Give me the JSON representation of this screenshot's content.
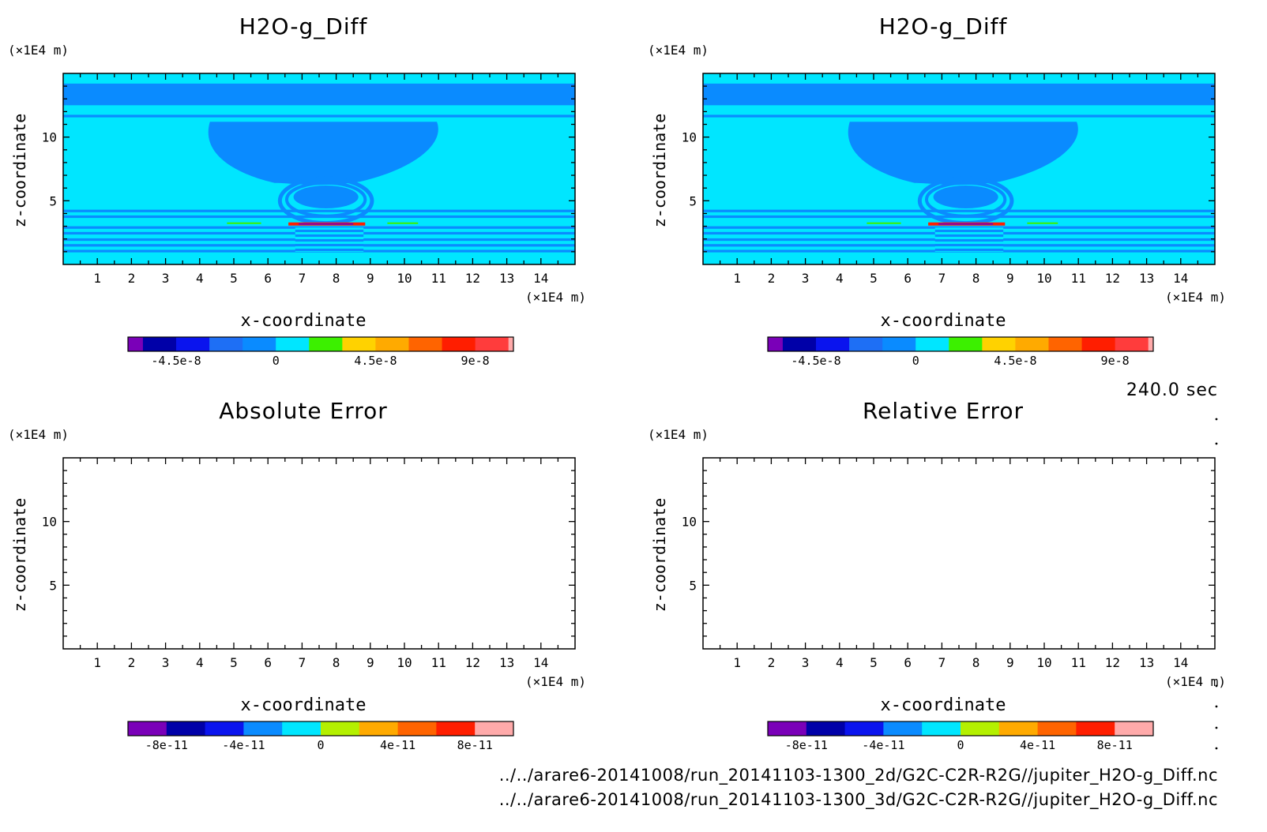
{
  "time_label": "240.0 sec",
  "files": [
    "../../arare6-20141008/run_20141103-1300_2d/G2C-C2R-R2G//jupiter_H2O-g_Diff.nc",
    "../../arare6-20141008/run_20141103-1300_3d/G2C-C2R-R2G//jupiter_H2O-g_Diff.nc"
  ],
  "colors": {
    "c_purple": "#7a00b8",
    "c_navy": "#0000a8",
    "c_blue": "#0a14ee",
    "c_mid": "#1e6ff5",
    "c_sky": "#0a8bff",
    "c_cyan": "#00e6ff",
    "c_green": "#3cf000",
    "c_lime": "#b4f000",
    "c_yellow": "#ffd200",
    "c_orange": "#ffaa00",
    "c_dorange": "#ff6400",
    "c_red": "#ff1e00",
    "c_lred": "#ff3c3c",
    "c_pink": "#ffaaaa"
  },
  "chart_data": [
    {
      "type": "heatmap",
      "title": "H2O-g_Diff",
      "xlabel": "x-coordinate",
      "ylabel": "z-coordinate",
      "x_unit": "(×1E4 m)",
      "y_unit": "(×1E4 m)",
      "xlim": [
        0,
        15
      ],
      "ylim": [
        0,
        15
      ],
      "xticks": [
        1,
        2,
        3,
        4,
        5,
        6,
        7,
        8,
        9,
        10,
        11,
        12,
        13,
        14
      ],
      "yticks": [
        5,
        10
      ],
      "field": "filled",
      "colorbar": {
        "colors": [
          "c_purple",
          "c_navy",
          "c_blue",
          "c_mid",
          "c_sky",
          "c_cyan",
          "c_green",
          "c_yellow",
          "c_orange",
          "c_dorange",
          "c_red",
          "c_lred",
          "c_pink"
        ],
        "weights": [
          0.45,
          1,
          1,
          1,
          1,
          1,
          1,
          1,
          1,
          1,
          1,
          1,
          0.15
        ],
        "tick_labels": [
          {
            "at": 1.45,
            "label": "-4.5e-8"
          },
          {
            "at": 4.45,
            "label": "0"
          },
          {
            "at": 7.45,
            "label": "4.5e-8"
          },
          {
            "at": 10.45,
            "label": "9e-8"
          }
        ]
      }
    },
    {
      "type": "heatmap",
      "title": "H2O-g_Diff",
      "xlabel": "x-coordinate",
      "ylabel": "z-coordinate",
      "x_unit": "(×1E4 m)",
      "y_unit": "(×1E4 m)",
      "xlim": [
        0,
        15
      ],
      "ylim": [
        0,
        15
      ],
      "xticks": [
        1,
        2,
        3,
        4,
        5,
        6,
        7,
        8,
        9,
        10,
        11,
        12,
        13,
        14
      ],
      "yticks": [
        5,
        10
      ],
      "field": "filled",
      "colorbar": {
        "colors": [
          "c_purple",
          "c_navy",
          "c_blue",
          "c_mid",
          "c_sky",
          "c_cyan",
          "c_green",
          "c_yellow",
          "c_orange",
          "c_dorange",
          "c_red",
          "c_lred",
          "c_pink"
        ],
        "weights": [
          0.45,
          1,
          1,
          1,
          1,
          1,
          1,
          1,
          1,
          1,
          1,
          1,
          0.15
        ],
        "tick_labels": [
          {
            "at": 1.45,
            "label": "-4.5e-8"
          },
          {
            "at": 4.45,
            "label": "0"
          },
          {
            "at": 7.45,
            "label": "4.5e-8"
          },
          {
            "at": 10.45,
            "label": "9e-8"
          }
        ]
      }
    },
    {
      "type": "heatmap",
      "title": "Absolute Error",
      "xlabel": "x-coordinate",
      "ylabel": "z-coordinate",
      "x_unit": "(×1E4 m)",
      "y_unit": "(×1E4 m)",
      "xlim": [
        0,
        15
      ],
      "ylim": [
        0,
        15
      ],
      "xticks": [
        1,
        2,
        3,
        4,
        5,
        6,
        7,
        8,
        9,
        10,
        11,
        12,
        13,
        14
      ],
      "yticks": [
        5,
        10
      ],
      "field": "empty",
      "colorbar": {
        "colors": [
          "c_purple",
          "c_navy",
          "c_blue",
          "c_sky",
          "c_cyan",
          "c_lime",
          "c_orange",
          "c_dorange",
          "c_red",
          "c_pink"
        ],
        "weights": [
          1,
          1,
          1,
          1,
          1,
          1,
          1,
          1,
          1,
          1
        ],
        "tick_labels": [
          {
            "at": 1,
            "label": "-8e-11"
          },
          {
            "at": 3,
            "label": "-4e-11"
          },
          {
            "at": 5,
            "label": "0"
          },
          {
            "at": 7,
            "label": "4e-11"
          },
          {
            "at": 9,
            "label": "8e-11"
          }
        ]
      }
    },
    {
      "type": "heatmap",
      "title": "Relative Error",
      "xlabel": "x-coordinate",
      "ylabel": "z-coordinate",
      "x_unit": "(×1E4 m)",
      "y_unit": "(×1E4 m)",
      "xlim": [
        0,
        15
      ],
      "ylim": [
        0,
        15
      ],
      "xticks": [
        1,
        2,
        3,
        4,
        5,
        6,
        7,
        8,
        9,
        10,
        11,
        12,
        13,
        14
      ],
      "yticks": [
        5,
        10
      ],
      "field": "empty",
      "colorbar": {
        "colors": [
          "c_purple",
          "c_navy",
          "c_blue",
          "c_sky",
          "c_cyan",
          "c_lime",
          "c_orange",
          "c_dorange",
          "c_red",
          "c_pink"
        ],
        "weights": [
          1,
          1,
          1,
          1,
          1,
          1,
          1,
          1,
          1,
          1
        ],
        "tick_labels": [
          {
            "at": 1,
            "label": "-8e-11"
          },
          {
            "at": 3,
            "label": "-4e-11"
          },
          {
            "at": 5,
            "label": "0"
          },
          {
            "at": 7,
            "label": "4e-11"
          },
          {
            "at": 9,
            "label": "8e-11"
          }
        ]
      }
    }
  ]
}
